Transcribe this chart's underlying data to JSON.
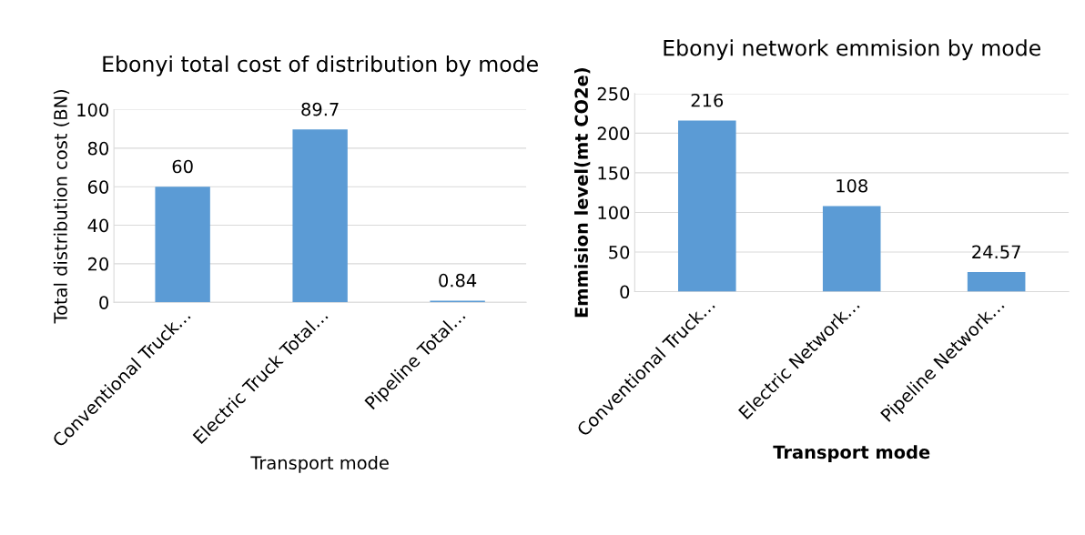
{
  "chart_data": [
    {
      "type": "bar",
      "title": "Ebonyi total cost of distribution by mode",
      "xlabel": "Transport mode",
      "ylabel": "Total distribution cost (BN)",
      "categories": [
        "Conventional Truck…",
        "Electric Truck Total…",
        "Pipeline Total…"
      ],
      "values": [
        60,
        89.7,
        0.84
      ],
      "color": "#5b9bd5",
      "ylim": [
        0,
        100
      ],
      "yticks": [
        0,
        20,
        40,
        60,
        80,
        100
      ],
      "grid": "y",
      "data_labels": true
    },
    {
      "type": "bar",
      "title": "Ebonyi network emmision by mode",
      "xlabel": "Transport mode",
      "ylabel": "Emmision level(mt CO2e)",
      "categories": [
        "Conventional Truck…",
        "Electric Network…",
        "Pipeline Network…"
      ],
      "values": [
        216,
        108,
        24.57
      ],
      "color": "#5b9bd5",
      "ylim": [
        0,
        250
      ],
      "yticks": [
        0,
        50,
        100,
        150,
        200,
        250
      ],
      "grid": "y",
      "data_labels": true
    }
  ]
}
